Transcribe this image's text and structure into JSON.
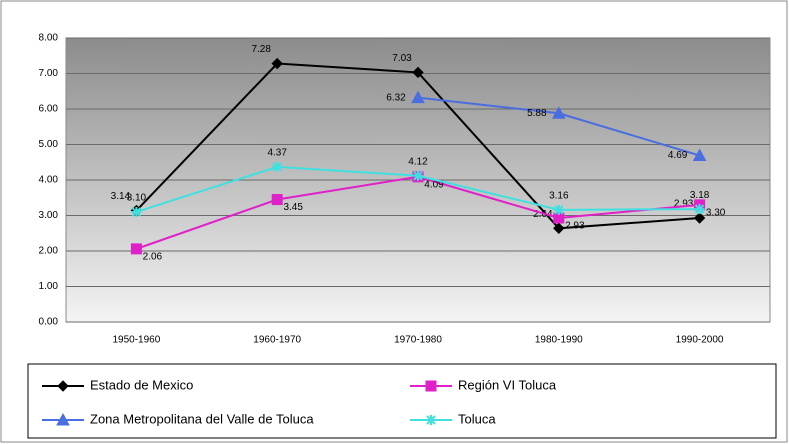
{
  "chart_data": {
    "type": "line",
    "categories": [
      "1950-1960",
      "1960-1970",
      "1970-1980",
      "1980-1990",
      "1990-2000"
    ],
    "series": [
      {
        "name": "Estado de Mexico",
        "color": "#000000",
        "marker": "diamond",
        "values": [
          3.14,
          7.28,
          7.03,
          2.64,
          2.93
        ],
        "value_labels": [
          "3.14",
          "7.28",
          "7.03",
          "2.64",
          "2.93"
        ]
      },
      {
        "name": "Región VI Toluca",
        "color": "#e020c8",
        "marker": "square",
        "values": [
          2.06,
          3.45,
          4.09,
          2.93,
          3.3
        ],
        "value_labels": [
          "2.06",
          "3.45",
          "4.09",
          "2.93",
          "3.30"
        ]
      },
      {
        "name": "Zona Metropolitana del Valle de Toluca",
        "color": "#4a6ee0",
        "marker": "triangle",
        "values": [
          null,
          null,
          6.32,
          5.88,
          4.69
        ],
        "value_labels": [
          null,
          null,
          "6.32",
          "5.88",
          "4.69"
        ]
      },
      {
        "name": "Toluca",
        "color": "#40e0e0",
        "marker": "star",
        "values": [
          3.1,
          4.37,
          4.12,
          3.16,
          3.18
        ],
        "value_labels": [
          "3.10",
          "4.37",
          "4.12",
          "3.16",
          "3.18"
        ]
      }
    ],
    "ylim": [
      0,
      8
    ],
    "yticks": [
      {
        "value": 0,
        "label": "0.00"
      },
      {
        "value": 1,
        "label": "1.00"
      },
      {
        "value": 2,
        "label": "2.00"
      },
      {
        "value": 3,
        "label": "3.00"
      },
      {
        "value": 4,
        "label": "4.00"
      },
      {
        "value": 5,
        "label": "5.00"
      },
      {
        "value": 6,
        "label": "6.00"
      },
      {
        "value": 7,
        "label": "7.00"
      },
      {
        "value": 8,
        "label": "8.00"
      }
    ],
    "grid": true,
    "legend": "bottom"
  }
}
